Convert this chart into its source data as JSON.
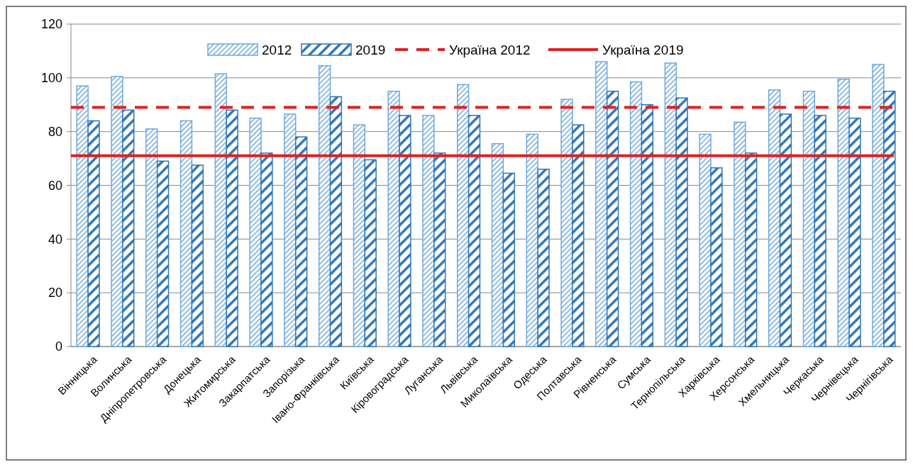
{
  "chart_data": {
    "type": "bar",
    "categories": [
      "Вінницька",
      "Волинська",
      "Дніпропетровська",
      "Донецька",
      "Житомирська",
      "Закарпатська",
      "Запорізька",
      "Івано-Франківська",
      "Київська",
      "Кіровоградська",
      "Луганська",
      "Львівська",
      "Миколаївська",
      "Одеська",
      "Полтавська",
      "Рівненська",
      "Сумська",
      "Тернопільська",
      "Харківська",
      "Херсонська",
      "Хмельницька",
      "Черкаська",
      "Чернівецька",
      "Чернігівська"
    ],
    "series": [
      {
        "name": "2012",
        "color": "#6fa8dc",
        "values": [
          97,
          100.5,
          81,
          84,
          101.5,
          85,
          86.5,
          104.5,
          82.5,
          95,
          86,
          97.5,
          75.5,
          79,
          92,
          106,
          98.5,
          105.5,
          79,
          83.5,
          95.5,
          95,
          99.5,
          105
        ]
      },
      {
        "name": "2019",
        "color": "#2e75b6",
        "values": [
          84,
          88,
          69,
          67.5,
          88,
          72,
          78,
          93,
          69.5,
          86,
          72,
          86,
          64.5,
          66,
          82.5,
          95,
          90,
          92.5,
          66.5,
          72,
          86.5,
          86,
          85,
          95
        ]
      }
    ],
    "ref_lines": [
      {
        "axis": "y",
        "value": 89,
        "label": "Україна 2012",
        "color": "#e02020",
        "line_style": "dashed"
      },
      {
        "axis": "y",
        "value": 71,
        "label": "Україна 2019",
        "color": "#e02020",
        "line_style": "solid"
      }
    ],
    "ylim": [
      0,
      120
    ],
    "yticks": [
      0,
      20,
      40,
      60,
      80,
      100,
      120
    ],
    "grid": "y",
    "legend": "top"
  }
}
